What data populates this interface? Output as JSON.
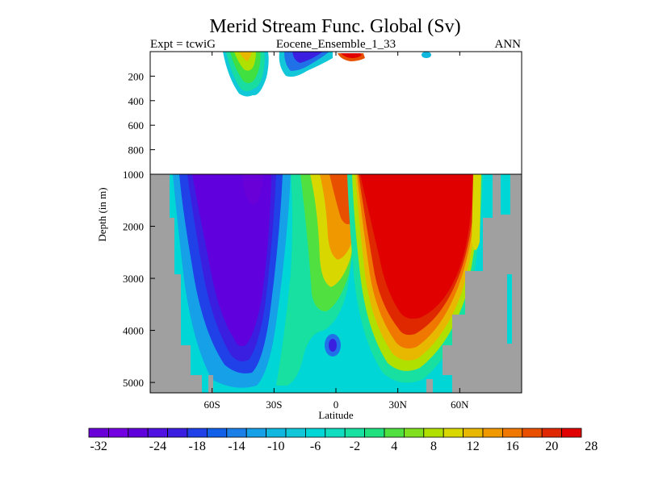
{
  "chart_data": {
    "type": "heatmap",
    "title": "Merid Stream Func. Global (Sv)",
    "left_label": "Expt = tcwiG",
    "center_label": "Eocene_Ensemble_1_33",
    "right_label": "ANN",
    "xlabel": "Latitude",
    "ylabel": "Depth (in m)",
    "xlim": [
      -90,
      90
    ],
    "top_panel": {
      "ylim": [
        0,
        1000
      ],
      "y_ticks": [
        200,
        400,
        600,
        800
      ]
    },
    "bottom_panel": {
      "ylim": [
        1000,
        5200
      ],
      "y_ticks": [
        1000,
        2000,
        3000,
        4000,
        5000
      ]
    },
    "x_ticks": [
      {
        "value": -60,
        "label": "60S"
      },
      {
        "value": -30,
        "label": "30S"
      },
      {
        "value": 0,
        "label": "0"
      },
      {
        "value": 30,
        "label": "30N"
      },
      {
        "value": 60,
        "label": "60N"
      }
    ],
    "colorbar": {
      "colors": [
        "#6a00d8",
        "#7300e0",
        "#6000dd",
        "#5012e0",
        "#3a1fe0",
        "#2040e8",
        "#1060e8",
        "#1a80e8",
        "#16a0e8",
        "#10b8e0",
        "#12c8d8",
        "#00d6d6",
        "#10dcc0",
        "#18e0a0",
        "#20e080",
        "#50e040",
        "#80e020",
        "#b0e000",
        "#d8d800",
        "#e8b800",
        "#f09800",
        "#f07800",
        "#e85000",
        "#e02800",
        "#e00000"
      ],
      "labels": [
        -32,
        -24,
        -18,
        -14,
        -10,
        -6,
        -2,
        4,
        8,
        12,
        16,
        20,
        28
      ],
      "label_positions": [
        0,
        3,
        5,
        7,
        9,
        11,
        13,
        15,
        17,
        19,
        21,
        23,
        25
      ]
    },
    "land_color": "#a0a0a0",
    "features": [
      {
        "name": "southern negative cell",
        "lat_range": [
          -70,
          -28
        ],
        "depth_range": [
          1000,
          5000
        ],
        "min": -32
      },
      {
        "name": "northern positive cell",
        "lat_range": [
          5,
          45
        ],
        "depth_range": [
          1000,
          4600
        ],
        "max": 28
      },
      {
        "name": "upper cell",
        "lat_range": [
          -45,
          -32
        ],
        "depth_range": [
          0,
          380
        ]
      },
      {
        "name": "upper negative",
        "lat_range": [
          -18,
          -2
        ],
        "depth_range": [
          0,
          200
        ]
      },
      {
        "name": "upper positive",
        "lat_range": [
          2,
          12
        ],
        "depth_range": [
          0,
          60
        ]
      }
    ]
  }
}
